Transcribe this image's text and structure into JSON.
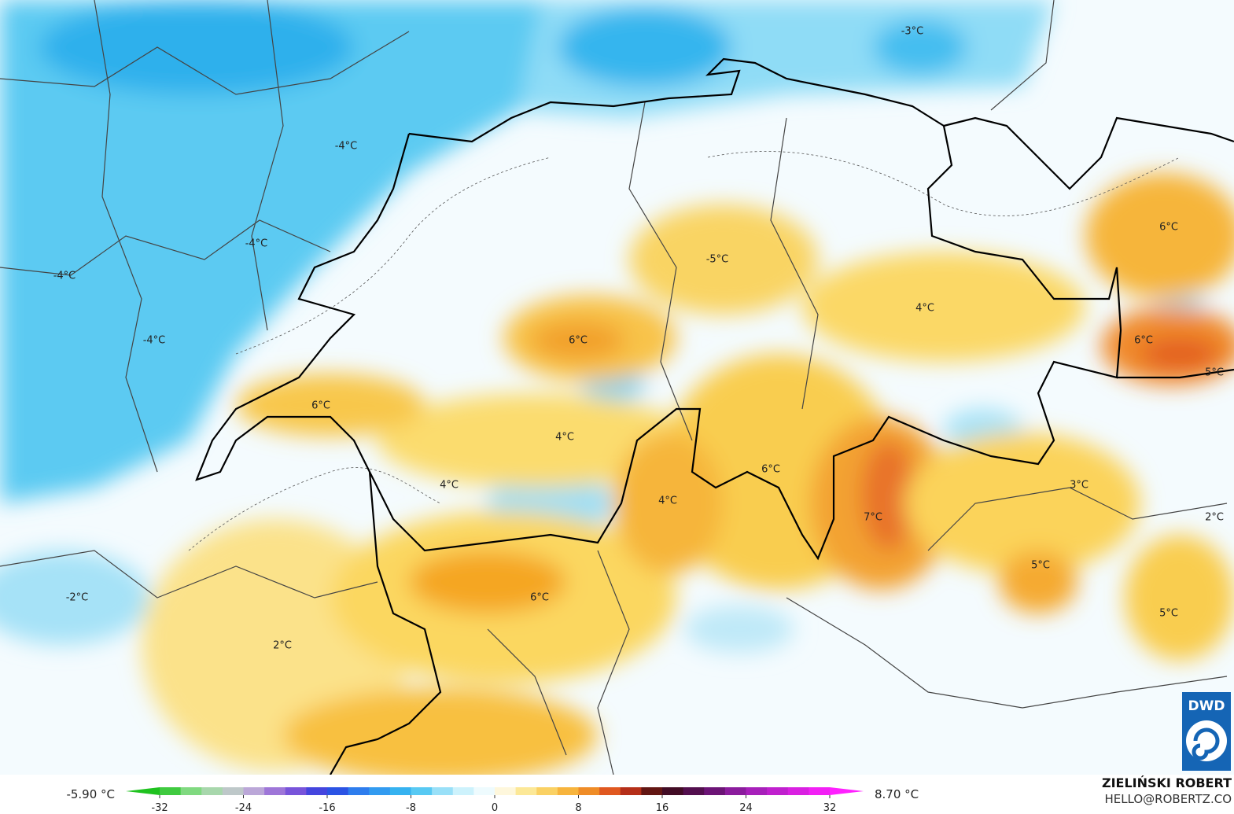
{
  "map": {
    "labels": [
      "-3°C",
      "-4°C",
      "-4°C",
      "-4°C",
      "-4°C",
      "6°C",
      "-5°C",
      "4°C",
      "6°C",
      "6°C",
      "5°C",
      "6°C",
      "4°C",
      "6°C",
      "4°C",
      "4°C",
      "3°C",
      "7°C",
      "2°C",
      "5°C",
      "-2°C",
      "6°C",
      "5°C",
      "2°C"
    ]
  },
  "colorbar": {
    "min_label": "-5.90 °C",
    "max_label": "8.70 °C",
    "ticks": [
      -32,
      -24,
      -16,
      -8,
      0,
      8,
      16,
      24,
      32
    ]
  },
  "credit": {
    "author": "ZIELIŃSKI ROBERT",
    "contact": "HELLO@ROBERTZ.CO"
  },
  "logo": "DWD"
}
